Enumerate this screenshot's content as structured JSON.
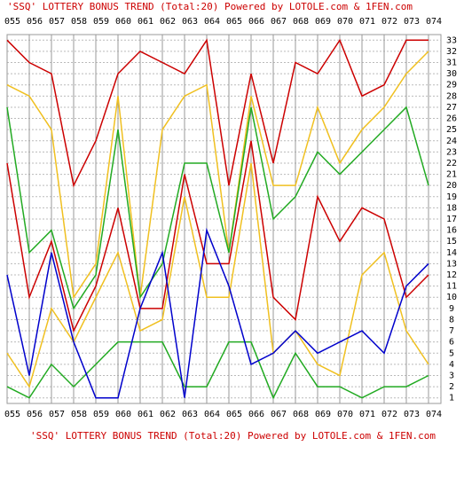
{
  "chart_data": {
    "type": "line",
    "title": "'SSQ' LOTTERY BONUS TREND (Total:20)  Powered by LOTOLE.com & 1FEN.com",
    "categories": [
      "055",
      "056",
      "057",
      "058",
      "059",
      "060",
      "061",
      "062",
      "063",
      "064",
      "065",
      "066",
      "067",
      "068",
      "069",
      "070",
      "071",
      "072",
      "073",
      "074"
    ],
    "series": [
      {
        "color": "#cc0000",
        "values": [
          33,
          31,
          30,
          20,
          24,
          30,
          32,
          31,
          30,
          33,
          20,
          30,
          22,
          31,
          30,
          33,
          28,
          29,
          33,
          33
        ]
      },
      {
        "color": "#f0c020",
        "values": [
          29,
          28,
          25,
          10,
          13,
          28,
          10,
          25,
          28,
          29,
          14,
          28,
          20,
          20,
          27,
          22,
          25,
          27,
          30,
          32
        ]
      },
      {
        "color": "#22aa22",
        "values": [
          27,
          14,
          16,
          9,
          12,
          25,
          10,
          13,
          22,
          22,
          14,
          27,
          17,
          19,
          23,
          21,
          23,
          25,
          27,
          20
        ]
      },
      {
        "color": "#cc0000",
        "values": [
          22,
          10,
          15,
          7,
          11,
          18,
          9,
          9,
          21,
          13,
          13,
          24,
          10,
          8,
          19,
          15,
          18,
          17,
          10,
          12
        ]
      },
      {
        "color": "#f0c020",
        "values": [
          5,
          2,
          9,
          6,
          10,
          14,
          7,
          8,
          19,
          10,
          10,
          22,
          5,
          7,
          4,
          3,
          12,
          14,
          7,
          4
        ]
      },
      {
        "color": "#22aa22",
        "values": [
          2,
          1,
          4,
          2,
          4,
          6,
          6,
          6,
          2,
          2,
          6,
          6,
          1,
          5,
          2,
          2,
          1,
          2,
          2,
          3
        ]
      },
      {
        "color": "#0000cc",
        "values": [
          12,
          3,
          14,
          6,
          1,
          1,
          9,
          14,
          1,
          16,
          11,
          4,
          5,
          7,
          5,
          6,
          7,
          5,
          11,
          13
        ]
      }
    ],
    "ylim": [
      0.5,
      33.5
    ],
    "yticks": [
      1,
      2,
      3,
      4,
      5,
      6,
      7,
      8,
      9,
      10,
      11,
      12,
      13,
      14,
      15,
      16,
      17,
      18,
      19,
      20,
      21,
      22,
      23,
      24,
      25,
      26,
      27,
      28,
      29,
      30,
      31,
      32,
      33
    ],
    "grid": true
  }
}
